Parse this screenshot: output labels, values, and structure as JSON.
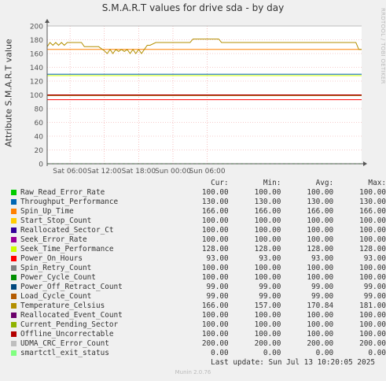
{
  "chart_data": {
    "type": "line",
    "title": "S.M.A.R.T values for drive sda - by day",
    "ylabel": "Attribute S.M.A.R.T value",
    "ylim": [
      0,
      200
    ],
    "yticks": [
      "0",
      "20",
      "40",
      "60",
      "80",
      "100",
      "120",
      "140",
      "160",
      "180",
      "200"
    ],
    "xlim": [
      "Sat 02:00",
      "Mon 09:00"
    ],
    "x_tick_labels": [
      "Sat 06:00",
      "Sat 12:00",
      "Sat 18:00",
      "Sun 00:00",
      "Sun 06:00"
    ],
    "grid": true,
    "legend_headers": [
      "Cur:",
      "Min:",
      "Avg:",
      "Max:"
    ],
    "series": [
      {
        "name": "Raw_Read_Error_Rate",
        "color": "#00cc00",
        "cur": "100.00",
        "min": "100.00",
        "avg": "100.00",
        "max": "100.00",
        "level": 100
      },
      {
        "name": "Throughput_Performance",
        "color": "#0066b3",
        "cur": "130.00",
        "min": "130.00",
        "avg": "130.00",
        "max": "130.00",
        "level": 130
      },
      {
        "name": "Spin_Up_Time",
        "color": "#ff8000",
        "cur": "166.00",
        "min": "166.00",
        "avg": "166.00",
        "max": "166.00",
        "level": 166
      },
      {
        "name": "Start_Stop_Count",
        "color": "#ffcc00",
        "cur": "100.00",
        "min": "100.00",
        "avg": "100.00",
        "max": "100.00",
        "level": 100
      },
      {
        "name": "Reallocated_Sector_Ct",
        "color": "#330099",
        "cur": "100.00",
        "min": "100.00",
        "avg": "100.00",
        "max": "100.00",
        "level": 100
      },
      {
        "name": "Seek_Error_Rate",
        "color": "#990099",
        "cur": "100.00",
        "min": "100.00",
        "avg": "100.00",
        "max": "100.00",
        "level": 100
      },
      {
        "name": "Seek_Time_Performance",
        "color": "#ccff00",
        "cur": "128.00",
        "min": "128.00",
        "avg": "128.00",
        "max": "128.00",
        "level": 128
      },
      {
        "name": "Power_On_Hours",
        "color": "#ff0000",
        "cur": "93.00",
        "min": "93.00",
        "avg": "93.00",
        "max": "93.00",
        "level": 93
      },
      {
        "name": "Spin_Retry_Count",
        "color": "#808080",
        "cur": "100.00",
        "min": "100.00",
        "avg": "100.00",
        "max": "100.00",
        "level": 100
      },
      {
        "name": "Power_Cycle_Count",
        "color": "#008f00",
        "cur": "100.00",
        "min": "100.00",
        "avg": "100.00",
        "max": "100.00",
        "level": 100
      },
      {
        "name": "Power_Off_Retract_Count",
        "color": "#00487d",
        "cur": "99.00",
        "min": "99.00",
        "avg": "99.00",
        "max": "99.00",
        "level": 99
      },
      {
        "name": "Load_Cycle_Count",
        "color": "#b35a00",
        "cur": "99.00",
        "min": "99.00",
        "avg": "99.00",
        "max": "99.00",
        "level": 99
      },
      {
        "name": "Temperature_Celsius",
        "color": "#b38f00",
        "cur": "166.00",
        "min": "157.00",
        "avg": "170.84",
        "max": "181.00",
        "level": 170
      },
      {
        "name": "Reallocated_Event_Count",
        "color": "#6b006b",
        "cur": "100.00",
        "min": "100.00",
        "avg": "100.00",
        "max": "100.00",
        "level": 100
      },
      {
        "name": "Current_Pending_Sector",
        "color": "#8fb300",
        "cur": "100.00",
        "min": "100.00",
        "avg": "100.00",
        "max": "100.00",
        "level": 100
      },
      {
        "name": "Offline_Uncorrectable",
        "color": "#b30000",
        "cur": "100.00",
        "min": "100.00",
        "avg": "100.00",
        "max": "100.00",
        "level": 100
      },
      {
        "name": "UDMA_CRC_Error_Count",
        "color": "#bebebe",
        "cur": "200.00",
        "min": "200.00",
        "avg": "200.00",
        "max": "200.00",
        "level": 200
      },
      {
        "name": "smartctl_exit_status",
        "color": "#80ff80",
        "cur": "0.00",
        "min": "0.00",
        "avg": "0.00",
        "max": "0.00",
        "level": 0
      }
    ],
    "temperature_trace": [
      [
        "Sat 02:00",
        170
      ],
      [
        "Sat 02:30",
        176
      ],
      [
        "Sat 03:00",
        172
      ],
      [
        "Sat 03:30",
        176
      ],
      [
        "Sat 04:00",
        172
      ],
      [
        "Sat 04:30",
        176
      ],
      [
        "Sat 05:00",
        172
      ],
      [
        "Sat 05:30",
        176
      ],
      [
        "Sat 06:00",
        176
      ],
      [
        "Sat 07:00",
        176
      ],
      [
        "Sat 08:00",
        176
      ],
      [
        "Sat 08:30",
        170
      ],
      [
        "Sat 09:00",
        170
      ],
      [
        "Sat 10:00",
        170
      ],
      [
        "Sat 11:00",
        170
      ],
      [
        "Sat 12:00",
        164
      ],
      [
        "Sat 12:30",
        160
      ],
      [
        "Sat 13:00",
        166
      ],
      [
        "Sat 13:30",
        160
      ],
      [
        "Sat 14:00",
        166
      ],
      [
        "Sat 14:30",
        163
      ],
      [
        "Sat 15:00",
        166
      ],
      [
        "Sat 15:30",
        163
      ],
      [
        "Sat 16:00",
        166
      ],
      [
        "Sat 16:30",
        160
      ],
      [
        "Sat 17:00",
        166
      ],
      [
        "Sat 17:30",
        160
      ],
      [
        "Sat 18:00",
        166
      ],
      [
        "Sat 18:30",
        160
      ],
      [
        "Sat 19:00",
        166
      ],
      [
        "Sat 19:30",
        172
      ],
      [
        "Sat 20:00",
        172
      ],
      [
        "Sat 21:00",
        176
      ],
      [
        "Sat 22:00",
        176
      ],
      [
        "Sun 00:00",
        176
      ],
      [
        "Sun 02:00",
        176
      ],
      [
        "Sun 03:00",
        176
      ],
      [
        "Sun 03:30",
        181
      ],
      [
        "Sun 05:00",
        181
      ],
      [
        "Sun 07:00",
        181
      ],
      [
        "Sun 08:00",
        181
      ],
      [
        "Sun 08:30",
        176
      ],
      [
        "Mon 08:00",
        176
      ],
      [
        "Mon 08:30",
        166
      ],
      [
        "Mon 09:00",
        166
      ]
    ]
  },
  "footer": {
    "last_update": "Last update:  Sun Jul 13 10:20:05 2025",
    "munin_version": "Munin 2.0.76"
  },
  "side_credit": "RRDTOOL / TOBI OETIKER"
}
